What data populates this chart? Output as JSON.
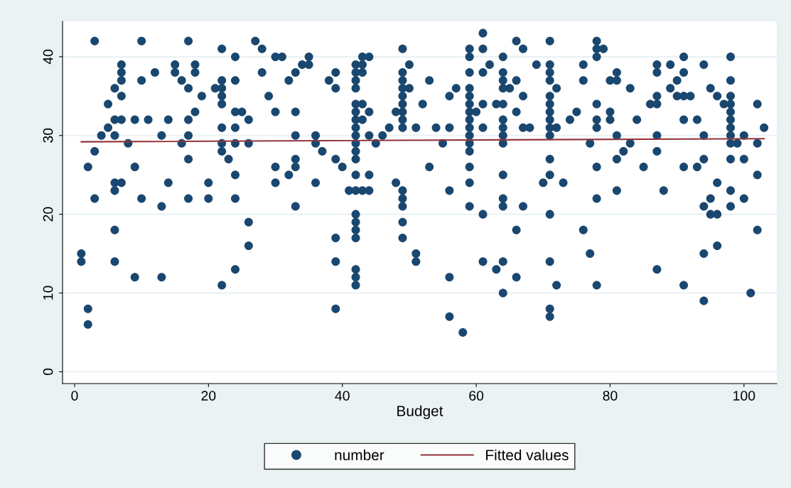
{
  "chart_data": {
    "type": "scatter",
    "xlabel": "Budget",
    "xlim": [
      -1.8,
      104.9
    ],
    "ylim": [
      -1.5,
      44.5
    ],
    "xticks": [
      0,
      20,
      40,
      60,
      80,
      100
    ],
    "yticks": [
      0,
      10,
      20,
      30,
      40
    ],
    "grid": "y",
    "legend": "bottom",
    "series": [
      {
        "name": "number",
        "marker": "circle",
        "color": "#1a476f",
        "x": [
          1,
          1,
          2,
          2,
          2,
          3,
          3,
          3,
          4,
          5,
          5,
          6,
          6,
          6,
          6,
          6,
          6,
          6,
          7,
          7,
          7,
          7,
          7,
          7,
          8,
          9,
          9,
          9,
          10,
          10,
          10,
          11,
          12,
          13,
          13,
          13,
          14,
          14,
          15,
          15,
          16,
          16,
          17,
          17,
          17,
          17,
          17,
          17,
          18,
          18,
          18,
          19,
          20,
          20,
          21,
          22,
          22,
          22,
          22,
          22,
          22,
          22,
          22,
          22,
          23,
          24,
          24,
          24,
          24,
          24,
          24,
          24,
          24,
          25,
          26,
          26,
          26,
          26,
          27,
          28,
          28,
          29,
          30,
          30,
          30,
          30,
          31,
          32,
          32,
          33,
          33,
          33,
          33,
          33,
          33,
          34,
          35,
          35,
          36,
          36,
          36,
          37,
          38,
          39,
          39,
          39,
          39,
          39,
          39,
          40,
          41,
          42,
          42,
          42,
          42,
          42,
          42,
          42,
          42,
          42,
          42,
          42,
          42,
          42,
          42,
          42,
          42,
          42,
          42,
          42,
          42,
          42,
          43,
          43,
          43,
          43,
          43,
          43,
          44,
          44,
          44,
          44,
          44,
          45,
          46,
          47,
          48,
          48,
          49,
          49,
          49,
          49,
          49,
          49,
          49,
          49,
          49,
          49,
          49,
          49,
          49,
          49,
          50,
          50,
          51,
          51,
          51,
          52,
          53,
          53,
          54,
          55,
          56,
          56,
          56,
          56,
          56,
          57,
          58,
          59,
          59,
          59,
          59,
          59,
          59,
          59,
          59,
          59,
          59,
          59,
          59,
          59,
          59,
          59,
          60,
          61,
          61,
          61,
          61,
          61,
          61,
          61,
          62,
          63,
          63,
          64,
          64,
          64,
          64,
          64,
          64,
          64,
          64,
          64,
          64,
          64,
          64,
          64,
          64,
          65,
          66,
          66,
          66,
          66,
          66,
          67,
          67,
          67,
          67,
          68,
          69,
          70,
          71,
          71,
          71,
          71,
          71,
          71,
          71,
          71,
          71,
          71,
          71,
          71,
          71,
          71,
          71,
          71,
          72,
          72,
          72,
          73,
          74,
          75,
          76,
          76,
          76,
          77,
          77,
          78,
          78,
          78,
          78,
          78,
          78,
          78,
          78,
          78,
          79,
          80,
          80,
          80,
          81,
          81,
          81,
          81,
          81,
          82,
          83,
          83,
          84,
          85,
          86,
          87,
          87,
          87,
          87,
          87,
          87,
          87,
          88,
          89,
          89,
          90,
          90,
          91,
          91,
          91,
          91,
          91,
          91,
          92,
          93,
          93,
          94,
          94,
          94,
          94,
          94,
          94,
          95,
          95,
          95,
          96,
          96,
          96,
          96,
          97,
          98,
          98,
          98,
          98,
          98,
          98,
          98,
          98,
          98,
          98,
          98,
          98,
          99,
          100,
          100,
          100,
          101,
          102,
          102,
          102,
          102,
          103
        ],
        "values": [
          15,
          14,
          26,
          8,
          6,
          42,
          28,
          22,
          30,
          34,
          31,
          36,
          32,
          30,
          24,
          23,
          18,
          14,
          39,
          38,
          37,
          35,
          32,
          24,
          29,
          32,
          26,
          12,
          42,
          37,
          22,
          32,
          38,
          30,
          21,
          12,
          32,
          24,
          39,
          38,
          37,
          29,
          42,
          36,
          32,
          30,
          27,
          22,
          39,
          38,
          33,
          35,
          24,
          22,
          36,
          41,
          37,
          36,
          35,
          34,
          31,
          29,
          28,
          11,
          27,
          40,
          37,
          33,
          31,
          29,
          25,
          22,
          13,
          33,
          32,
          29,
          19,
          16,
          42,
          38,
          41,
          35,
          40,
          33,
          26,
          24,
          40,
          37,
          25,
          38,
          33,
          30,
          27,
          26,
          21,
          39,
          40,
          39,
          30,
          29,
          24,
          28,
          37,
          38,
          36,
          27,
          17,
          14,
          8,
          26,
          23,
          39,
          38,
          37,
          36,
          34,
          33,
          32,
          31,
          30,
          29,
          28,
          27,
          25,
          23,
          20,
          19,
          18,
          17,
          13,
          12,
          11,
          40,
          39,
          38,
          34,
          32,
          23,
          40,
          33,
          30,
          25,
          23,
          29,
          30,
          31,
          33,
          24,
          41,
          38,
          37,
          36,
          35,
          34,
          33,
          32,
          31,
          23,
          22,
          21,
          19,
          17,
          39,
          36,
          31,
          15,
          14,
          34,
          37,
          26,
          31,
          29,
          35,
          31,
          23,
          12,
          7,
          36,
          5,
          41,
          40,
          38,
          36,
          35,
          34,
          33,
          32,
          31,
          30,
          29,
          28,
          26,
          24,
          21,
          33,
          43,
          41,
          38,
          34,
          31,
          20,
          14,
          39,
          34,
          13,
          40,
          38,
          37,
          36,
          34,
          32,
          31,
          30,
          29,
          25,
          22,
          21,
          14,
          10,
          36,
          42,
          37,
          33,
          18,
          12,
          41,
          35,
          31,
          21,
          31,
          39,
          24,
          42,
          39,
          38,
          37,
          35,
          34,
          33,
          32,
          31,
          30,
          27,
          25,
          20,
          14,
          8,
          7,
          36,
          31,
          11,
          24,
          32,
          33,
          39,
          37,
          18,
          29,
          15,
          42,
          41,
          40,
          34,
          32,
          31,
          26,
          22,
          11,
          41,
          37,
          33,
          32,
          38,
          37,
          30,
          27,
          23,
          28,
          36,
          29,
          32,
          26,
          34,
          39,
          38,
          35,
          34,
          30,
          28,
          13,
          23,
          39,
          36,
          35,
          37,
          40,
          38,
          35,
          32,
          26,
          11,
          35,
          32,
          26,
          39,
          30,
          27,
          21,
          15,
          9,
          36,
          22,
          20,
          35,
          24,
          20,
          16,
          34,
          40,
          37,
          35,
          34,
          33,
          32,
          31,
          30,
          29,
          27,
          23,
          21,
          29,
          30,
          27,
          22,
          10,
          34,
          29,
          25,
          18,
          31
        ]
      },
      {
        "name": "Fitted values",
        "type": "line",
        "color": "#90353b",
        "x": [
          1,
          103
        ],
        "values": [
          29.2,
          29.6
        ]
      }
    ]
  }
}
